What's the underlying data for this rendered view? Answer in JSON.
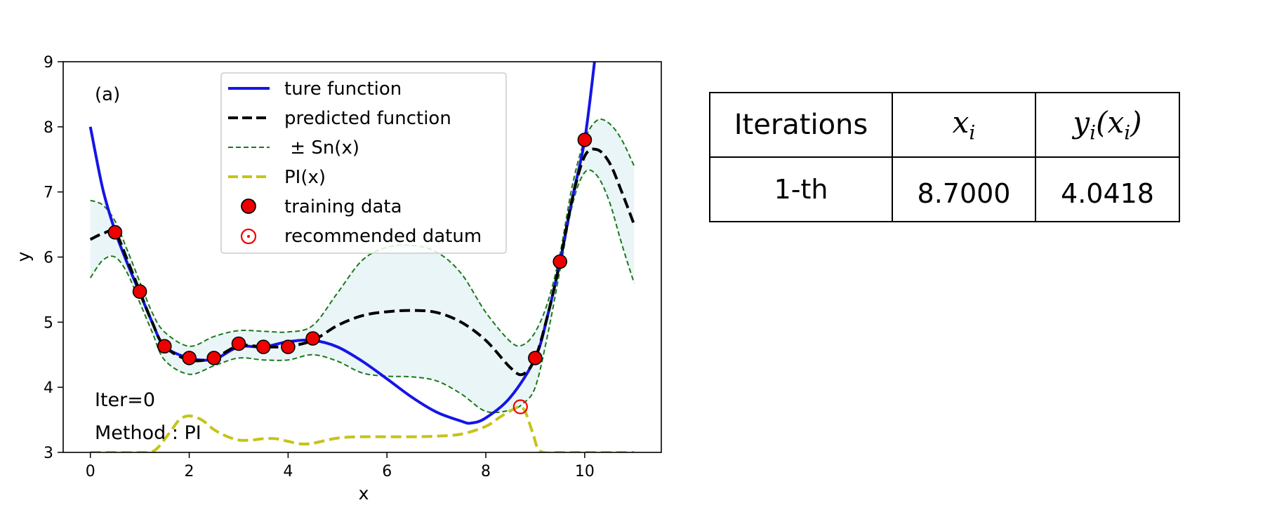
{
  "chart_data": {
    "type": "line",
    "panel_label": "(a)",
    "xlabel": "x",
    "ylabel": "y",
    "xlim": [
      -0.55,
      11.55
    ],
    "ylim": [
      3,
      9
    ],
    "x_ticks": [
      0,
      2,
      4,
      6,
      8,
      10
    ],
    "y_ticks": [
      3,
      4,
      5,
      6,
      7,
      8,
      9
    ],
    "grid": false,
    "legend_position": "top-center",
    "legend": [
      {
        "label": "ture function",
        "style": "solid-blue"
      },
      {
        "label": "predicted function",
        "style": "dashed-black"
      },
      {
        "label": " ± Sn(x)",
        "style": "dashed-green"
      },
      {
        "label": "PI(x)",
        "style": "dashed-yellow"
      },
      {
        "label": "training data",
        "style": "red-dot"
      },
      {
        "label": "recommended datum",
        "style": "red-circle"
      }
    ],
    "annotations": [
      "Iter=0",
      "Method : PI"
    ],
    "series": [
      {
        "name": "ture function",
        "color": "#1515e6",
        "x": [
          0,
          0.25,
          0.5,
          0.75,
          1.0,
          1.25,
          1.5,
          2.0,
          2.5,
          3.0,
          3.5,
          4.0,
          4.5,
          5.0,
          5.5,
          6.0,
          6.5,
          7.0,
          7.5,
          7.7,
          8.0,
          8.5,
          9.0,
          9.25,
          9.5,
          9.75,
          10.0,
          10.2
        ],
        "y": [
          8.0,
          7.05,
          6.4,
          5.9,
          5.45,
          5.0,
          4.63,
          4.45,
          4.43,
          4.62,
          4.62,
          4.7,
          4.72,
          4.62,
          4.4,
          4.13,
          3.85,
          3.62,
          3.48,
          3.45,
          3.53,
          3.85,
          4.45,
          5.1,
          5.93,
          6.9,
          7.8,
          9.0
        ]
      },
      {
        "name": "predicted function",
        "color": "#000000",
        "x": [
          0,
          0.25,
          0.5,
          0.75,
          1.0,
          1.25,
          1.5,
          2.0,
          2.5,
          3.0,
          3.5,
          4.0,
          4.5,
          5.0,
          5.5,
          6.0,
          6.5,
          7.0,
          7.5,
          8.0,
          8.5,
          8.75,
          9.0,
          9.25,
          9.5,
          9.75,
          10.0,
          10.25,
          10.5,
          10.75,
          11.0
        ],
        "y": [
          6.27,
          6.36,
          6.38,
          5.95,
          5.47,
          5.0,
          4.63,
          4.42,
          4.45,
          4.64,
          4.62,
          4.63,
          4.72,
          4.95,
          5.1,
          5.16,
          5.18,
          5.15,
          5.0,
          4.72,
          4.3,
          4.2,
          4.45,
          5.1,
          5.93,
          6.9,
          7.55,
          7.65,
          7.45,
          7.0,
          6.5
        ]
      },
      {
        "name": "upper Sn(x)",
        "color": "#1a7a1a",
        "x": [
          0,
          0.25,
          0.5,
          0.75,
          1.0,
          1.25,
          1.5,
          2.0,
          2.5,
          3.0,
          3.5,
          4.0,
          4.5,
          5.0,
          5.5,
          6.0,
          6.5,
          7.0,
          7.5,
          8.0,
          8.5,
          8.75,
          9.0,
          9.25,
          9.5,
          9.75,
          10.0,
          10.25,
          10.5,
          10.75,
          11.0
        ],
        "y": [
          6.87,
          6.8,
          6.55,
          6.1,
          5.62,
          5.15,
          4.85,
          4.63,
          4.78,
          4.87,
          4.86,
          4.85,
          4.95,
          5.45,
          5.95,
          6.15,
          6.18,
          6.08,
          5.75,
          5.15,
          4.7,
          4.65,
          4.85,
          5.3,
          6.05,
          7.1,
          7.8,
          8.1,
          8.05,
          7.8,
          7.4
        ]
      },
      {
        "name": "lower Sn(x)",
        "color": "#1a7a1a",
        "x": [
          0,
          0.25,
          0.5,
          0.75,
          1.0,
          1.25,
          1.5,
          2.0,
          2.5,
          3.0,
          3.5,
          4.0,
          4.5,
          5.0,
          5.5,
          6.0,
          6.5,
          7.0,
          7.5,
          8.0,
          8.5,
          8.75,
          9.0,
          9.25,
          9.5,
          9.75,
          10.0,
          10.25,
          10.5,
          10.75,
          11.0
        ],
        "y": [
          5.68,
          5.95,
          6.0,
          5.75,
          5.3,
          4.85,
          4.42,
          4.2,
          4.33,
          4.45,
          4.42,
          4.42,
          4.5,
          4.4,
          4.22,
          4.17,
          4.16,
          4.1,
          3.9,
          3.63,
          3.65,
          3.75,
          4.0,
          4.8,
          5.8,
          6.8,
          7.3,
          7.25,
          6.85,
          6.2,
          5.6
        ]
      },
      {
        "name": "PI(x)",
        "color": "#c4c418",
        "x": [
          0,
          0.5,
          1.0,
          1.3,
          1.6,
          1.8,
          2.0,
          2.25,
          2.5,
          2.75,
          3.0,
          3.25,
          3.5,
          3.75,
          4.0,
          4.25,
          4.5,
          5.0,
          5.5,
          6.0,
          6.5,
          7.0,
          7.5,
          8.0,
          8.3,
          8.6,
          8.7,
          8.8,
          8.95,
          9.1,
          9.5,
          10.0,
          10.5,
          11.0
        ],
        "y": [
          3.0,
          3.0,
          3.0,
          3.03,
          3.3,
          3.5,
          3.56,
          3.5,
          3.35,
          3.25,
          3.19,
          3.19,
          3.21,
          3.21,
          3.17,
          3.13,
          3.14,
          3.22,
          3.24,
          3.24,
          3.24,
          3.25,
          3.28,
          3.4,
          3.55,
          3.68,
          3.7,
          3.62,
          3.3,
          3.02,
          3.0,
          3.0,
          3.0,
          3.0
        ]
      }
    ],
    "training_data": {
      "x": [
        0.5,
        1.0,
        1.5,
        2.0,
        2.5,
        3.0,
        3.5,
        4.0,
        4.5,
        9.0,
        9.5,
        10.0
      ],
      "y": [
        6.38,
        5.47,
        4.63,
        4.45,
        4.45,
        4.67,
        4.62,
        4.62,
        4.75,
        4.45,
        5.93,
        7.8
      ]
    },
    "recommended_datum": {
      "x": 8.7,
      "y": 3.7
    }
  },
  "table": {
    "headers": [
      "Iterations",
      "x_i",
      "y_i(x_i)"
    ],
    "header_x_base": "x",
    "header_x_sub": "i",
    "header_y_base": "y",
    "header_y_sub": "i",
    "header_y_arg_base": "x",
    "header_y_arg_sub": "i",
    "rows": [
      {
        "iteration": "1-th",
        "x": "8.7000",
        "y": "4.0418"
      }
    ]
  }
}
